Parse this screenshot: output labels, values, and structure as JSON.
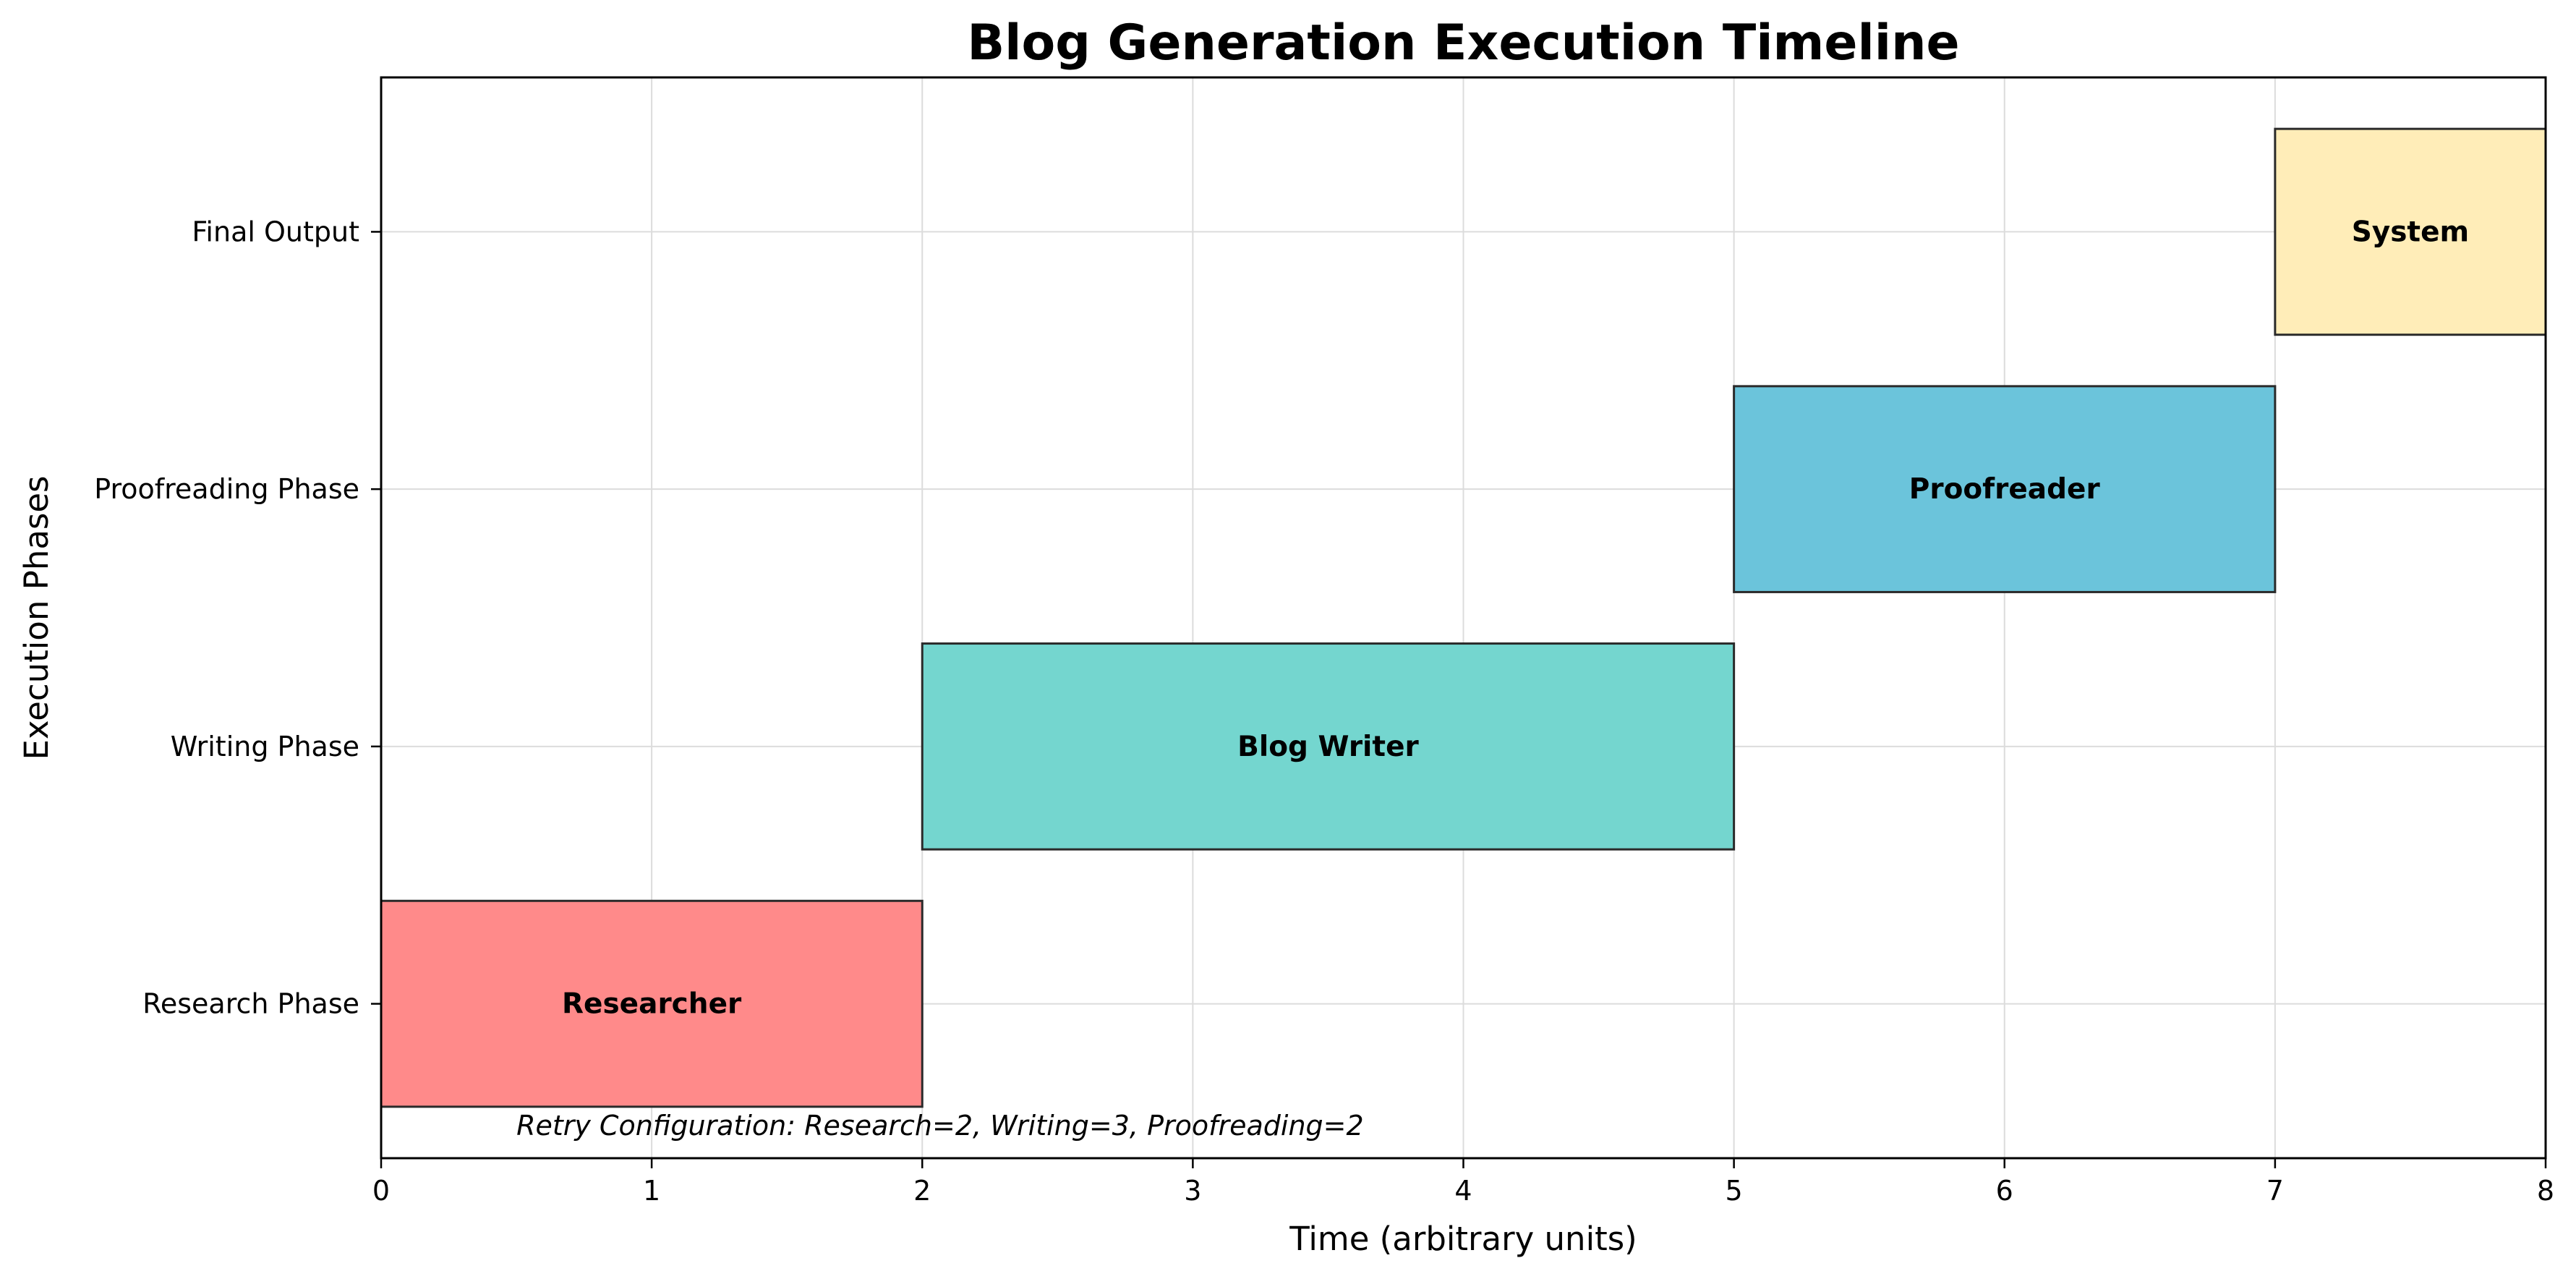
{
  "chart_data": {
    "type": "bar",
    "orientation": "horizontal",
    "title": "Blog Generation Execution Timeline",
    "xlabel": "Time (arbitrary units)",
    "ylabel": "Execution Phases",
    "xlim": [
      0,
      8
    ],
    "xticks": [
      0,
      1,
      2,
      3,
      4,
      5,
      6,
      7,
      8
    ],
    "categories": [
      "Research Phase",
      "Writing Phase",
      "Proofreading Phase",
      "Final Output"
    ],
    "grid": true,
    "bars": [
      {
        "category": "Research Phase",
        "start": 0,
        "end": 2,
        "label": "Researcher",
        "color": "#ff8a8a"
      },
      {
        "category": "Writing Phase",
        "start": 2,
        "end": 5,
        "label": "Blog Writer",
        "color": "#74d6cf"
      },
      {
        "category": "Proofreading Phase",
        "start": 5,
        "end": 7,
        "label": "Proofreader",
        "color": "#6bc4db"
      },
      {
        "category": "Final Output",
        "start": 7,
        "end": 8,
        "label": "System",
        "color": "#ffedb8"
      }
    ],
    "annotation": {
      "text": "Retry Configuration: Research=2, Writing=3, Proofreading=2",
      "x": 0.5
    }
  }
}
